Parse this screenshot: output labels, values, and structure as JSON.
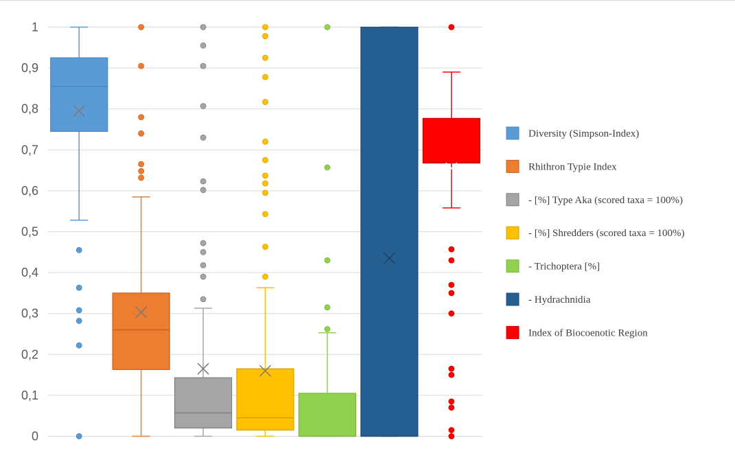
{
  "chart_data": {
    "type": "boxplot",
    "title": "",
    "xlabel": "",
    "ylabel": "",
    "ylim": [
      0,
      1
    ],
    "y_ticks": [
      "0",
      "0,1",
      "0,2",
      "0,3",
      "0,4",
      "0,5",
      "0,6",
      "0,7",
      "0,8",
      "0,9",
      "1"
    ],
    "y_tick_values": [
      0,
      0.1,
      0.2,
      0.3,
      0.4,
      0.5,
      0.6,
      0.7,
      0.8,
      0.9,
      1
    ],
    "grid": true,
    "legend_position": "right",
    "series": [
      {
        "name": "Diversity (Simpson-Index)",
        "color": "#5b9bd5",
        "stroke": "#4a87c2",
        "min": 0.528,
        "q1": 0.745,
        "median": 0.855,
        "q3": 0.925,
        "max": 1.0,
        "mean": 0.795,
        "outliers": [
          0.455,
          0.363,
          0.308,
          0.282,
          0.222,
          0.0
        ]
      },
      {
        "name": "Rhithron Typie Index",
        "color": "#ed7d31",
        "stroke": "#c8611c",
        "min": 0.0,
        "q1": 0.163,
        "median": 0.26,
        "q3": 0.35,
        "max": 0.585,
        "mean": 0.303,
        "outliers": [
          1.0,
          0.905,
          0.78,
          0.74,
          0.665,
          0.648,
          0.632
        ]
      },
      {
        "name": "- [%] Type Aka (scored taxa = 100%)",
        "color": "#a5a5a5",
        "stroke": "#7f7f7f",
        "min": 0.0,
        "q1": 0.02,
        "median": 0.057,
        "q3": 0.143,
        "max": 0.313,
        "mean": 0.165,
        "outliers": [
          1.0,
          0.955,
          0.905,
          0.807,
          0.73,
          0.623,
          0.602,
          0.472,
          0.45,
          0.418,
          0.39,
          0.335
        ]
      },
      {
        "name": "- [%] Shredders (scored taxa = 100%)",
        "color": "#ffc000",
        "stroke": "#d6a100",
        "min": 0.0,
        "q1": 0.015,
        "median": 0.045,
        "q3": 0.165,
        "max": 0.363,
        "mean": 0.16,
        "outliers": [
          1.0,
          0.978,
          0.925,
          0.878,
          0.817,
          0.72,
          0.675,
          0.637,
          0.618,
          0.595,
          0.543,
          0.463,
          0.39
        ]
      },
      {
        "name": "- Trichoptera [%]",
        "color": "#92d050",
        "stroke": "#7ab83d",
        "min": 0.0,
        "q1": 0.0,
        "median": 0.0,
        "q3": 0.105,
        "max": 0.253,
        "mean": null,
        "outliers": [
          1.0,
          0.657,
          0.43,
          0.315,
          0.262
        ]
      },
      {
        "name": "- Hydrachnidia",
        "color": "#255e91",
        "stroke": "#1f4e79",
        "min": 0.0,
        "q1": 0.0,
        "median": 0.0,
        "q3": 1.0,
        "max": 1.0,
        "mean": 0.435,
        "outliers": []
      },
      {
        "name": "Index of Biocoenotic Region",
        "color": "#ff0000",
        "stroke": "#cc0000",
        "min": 0.558,
        "q1": 0.668,
        "median": 0.668,
        "q3": 0.777,
        "max": 0.89,
        "mean": 0.655,
        "outliers": [
          1.0,
          0.457,
          0.43,
          0.37,
          0.35,
          0.3,
          0.165,
          0.15,
          0.085,
          0.07,
          0.015,
          0.0
        ]
      }
    ]
  }
}
